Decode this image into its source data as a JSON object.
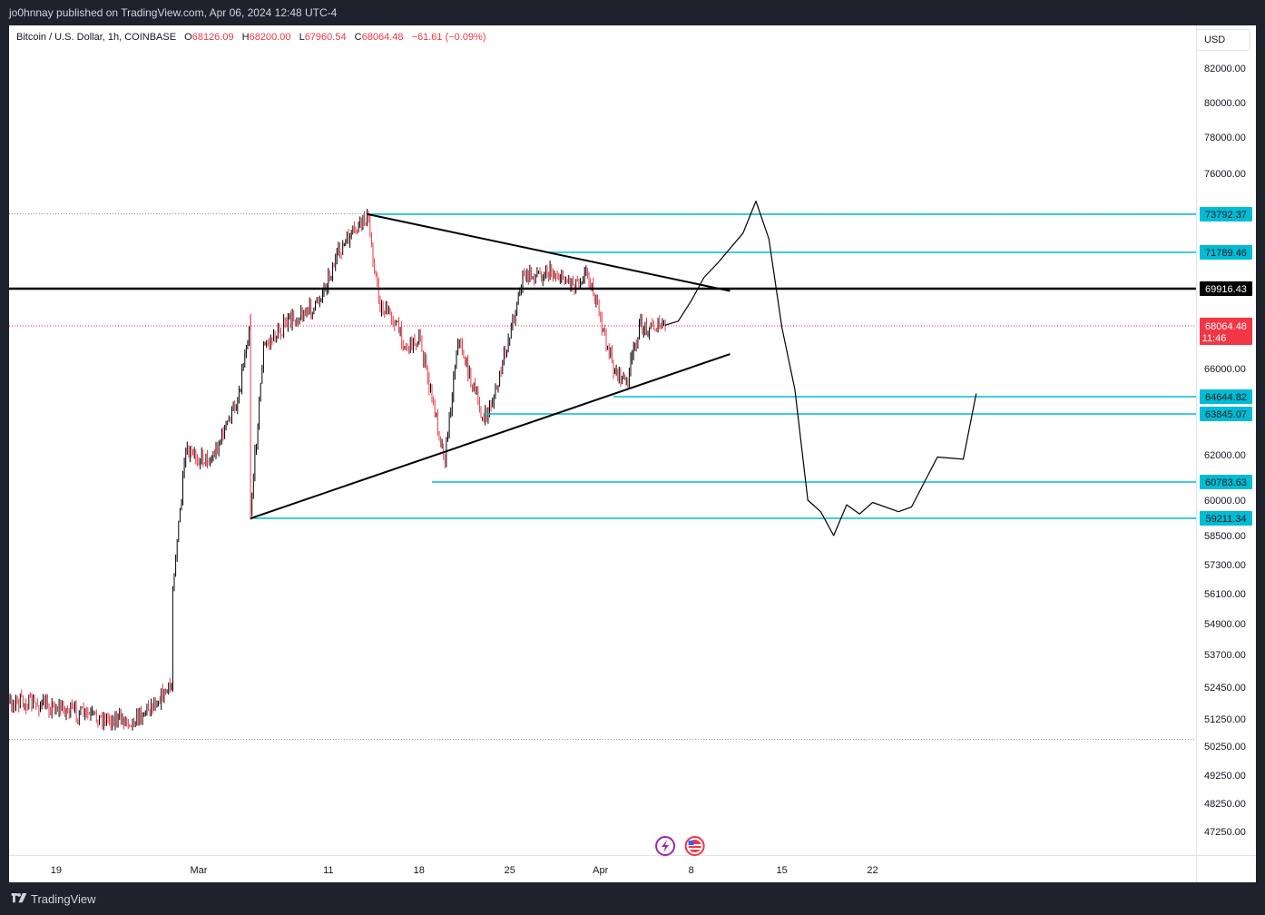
{
  "header": {
    "published_text": "jo0hnnay published on TradingView.com, Apr 06, 2024 12:48 UTC-4"
  },
  "legend": {
    "symbol": "Bitcoin / U.S. Dollar, 1h, COINBASE",
    "open_label": "O",
    "open": "68126.09",
    "high_label": "H",
    "high": "68200.00",
    "low_label": "L",
    "low": "67960.54",
    "close_label": "C",
    "close": "68064.48",
    "change": "−61.61 (−0.09%)"
  },
  "currency": "USD",
  "footer": {
    "brand": "TradingView"
  },
  "colors": {
    "background": "#ffffff",
    "frame": "#1e222d",
    "candle_up": "#000000",
    "candle_down": "#f23645",
    "level_line": "#00bcd4",
    "trend_line": "#000000",
    "current_price": "#f23645"
  },
  "chart_data": {
    "type": "candlestick",
    "x_axis_ticks": [
      "19",
      "Mar",
      "11",
      "18",
      "25",
      "Apr",
      "8",
      "15",
      "22"
    ],
    "y_axis_ticks": [
      "82000.00",
      "80000.00",
      "78000.00",
      "76000.00",
      "66000.00",
      "62000.00",
      "60000.00",
      "58500.00",
      "57300.00",
      "56100.00",
      "54900.00",
      "53700.00",
      "52450.00",
      "51250.00",
      "50250.00",
      "49250.00",
      "48250.00",
      "47250.00"
    ],
    "levels": [
      {
        "label": "73792.37",
        "value": 73792.37,
        "style": "cyan"
      },
      {
        "label": "71789.46",
        "value": 71789.46,
        "style": "cyan"
      },
      {
        "label": "69916.43",
        "value": 69916.43,
        "style": "black"
      },
      {
        "label": "64644.82",
        "value": 64644.82,
        "style": "cyan"
      },
      {
        "label": "63845.07",
        "value": 63845.07,
        "style": "cyan"
      },
      {
        "label": "60783.63",
        "value": 60783.63,
        "style": "cyan"
      },
      {
        "label": "59211.34",
        "value": 59211.34,
        "style": "cyan"
      }
    ],
    "current_price": {
      "label": "68064.48",
      "value": 68064.48,
      "countdown": "11:46"
    },
    "trend_lines": [
      {
        "name": "descending",
        "from": {
          "date": "Mar 14",
          "price": 73800
        },
        "to": {
          "date": "Apr 11",
          "price": 69800
        }
      },
      {
        "name": "ascending",
        "from": {
          "date": "Mar 5",
          "price": 59211
        },
        "to": {
          "date": "Apr 11",
          "price": 66700
        }
      }
    ],
    "price_path": [
      {
        "date": "Feb 13",
        "price": 51600
      },
      {
        "date": "Feb 16",
        "price": 51900
      },
      {
        "date": "Feb 19",
        "price": 51700
      },
      {
        "date": "Feb 22",
        "price": 51300
      },
      {
        "date": "Feb 25",
        "price": 51200
      },
      {
        "date": "Feb 28",
        "price": 52500
      },
      {
        "date": "Feb 28",
        "price": 56500
      },
      {
        "date": "Feb 29",
        "price": 62000
      },
      {
        "date": "Mar 2",
        "price": 61800
      },
      {
        "date": "Mar 4",
        "price": 64500
      },
      {
        "date": "Mar 5",
        "price": 68500
      },
      {
        "date": "Mar 5",
        "price": 59500
      },
      {
        "date": "Mar 6",
        "price": 67000
      },
      {
        "date": "Mar 8",
        "price": 68300
      },
      {
        "date": "Mar 10",
        "price": 69000
      },
      {
        "date": "Mar 12",
        "price": 72000
      },
      {
        "date": "Mar 14",
        "price": 73700
      },
      {
        "date": "Mar 15",
        "price": 69000
      },
      {
        "date": "Mar 16",
        "price": 68500
      },
      {
        "date": "Mar 17",
        "price": 67000
      },
      {
        "date": "Mar 18",
        "price": 67500
      },
      {
        "date": "Mar 20",
        "price": 61800
      },
      {
        "date": "Mar 21",
        "price": 67500
      },
      {
        "date": "Mar 23",
        "price": 63500
      },
      {
        "date": "Mar 24",
        "price": 65000
      },
      {
        "date": "Mar 26",
        "price": 70500
      },
      {
        "date": "Mar 28",
        "price": 70800
      },
      {
        "date": "Mar 30",
        "price": 70200
      },
      {
        "date": "Mar 31",
        "price": 70800
      },
      {
        "date": "Apr 2",
        "price": 66000
      },
      {
        "date": "Apr 3",
        "price": 65300
      },
      {
        "date": "Apr 4",
        "price": 68000
      },
      {
        "date": "Apr 6",
        "price": 68064
      }
    ],
    "forecast_path": [
      {
        "date": "Apr 6",
        "price": 68100
      },
      {
        "date": "Apr 7",
        "price": 68300
      },
      {
        "date": "Apr 8",
        "price": 69300
      },
      {
        "date": "Apr 9",
        "price": 70500
      },
      {
        "date": "Apr 10",
        "price": 71200
      },
      {
        "date": "Apr 12",
        "price": 72800
      },
      {
        "date": "Apr 13",
        "price": 74500
      },
      {
        "date": "Apr 14",
        "price": 72500
      },
      {
        "date": "Apr 15",
        "price": 68000
      },
      {
        "date": "Apr 16",
        "price": 65000
      },
      {
        "date": "Apr 17",
        "price": 60000
      },
      {
        "date": "Apr 18",
        "price": 59500
      },
      {
        "date": "Apr 19",
        "price": 58500
      },
      {
        "date": "Apr 20",
        "price": 59800
      },
      {
        "date": "Apr 21",
        "price": 59400
      },
      {
        "date": "Apr 22",
        "price": 59900
      },
      {
        "date": "Apr 24",
        "price": 59500
      },
      {
        "date": "Apr 25",
        "price": 59700
      },
      {
        "date": "Apr 27",
        "price": 61900
      },
      {
        "date": "Apr 29",
        "price": 61800
      },
      {
        "date": "Apr 30",
        "price": 64800
      }
    ]
  }
}
